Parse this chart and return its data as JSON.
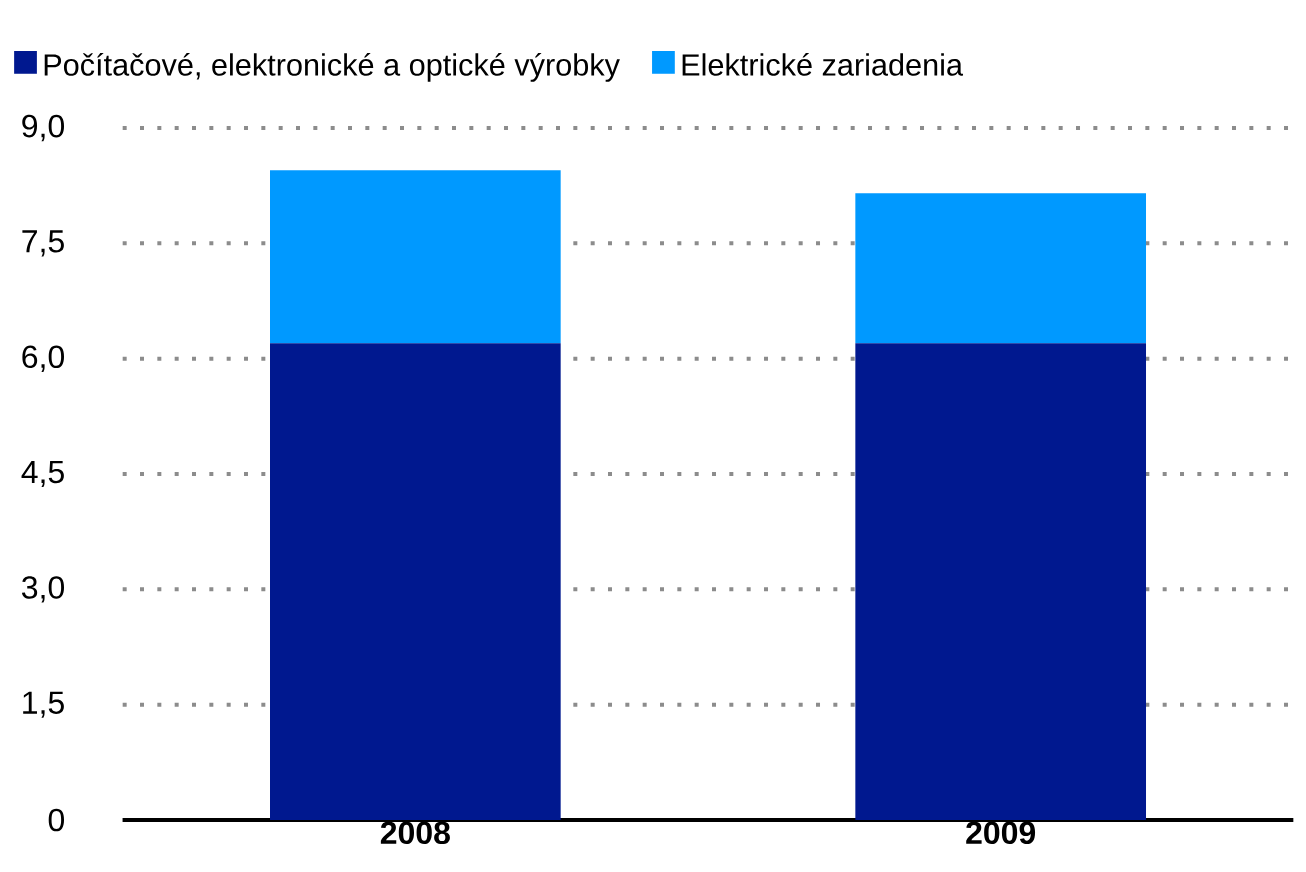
{
  "chart_data": {
    "type": "bar",
    "stacked": true,
    "categories": [
      "2008",
      "2009"
    ],
    "series": [
      {
        "name": "Počítačové, elektronické a optické výrobky",
        "color": "#00188f",
        "values": [
          6.2,
          6.2
        ]
      },
      {
        "name": "Elektrické zariadenia",
        "color": "#0099ff",
        "values": [
          2.25,
          1.95
        ]
      }
    ],
    "ylim": [
      0,
      9
    ],
    "yticks": [
      0,
      {
        "value": 1.5,
        "label": "1,5"
      },
      {
        "value": 3,
        "label": "3,0"
      },
      {
        "value": 4.5,
        "label": "4,5"
      },
      {
        "value": 6,
        "label": "6,0"
      },
      {
        "value": 7.5,
        "label": "7,5"
      },
      {
        "value": 9,
        "label": "9,0"
      }
    ],
    "grid": "y",
    "legend": "top"
  }
}
